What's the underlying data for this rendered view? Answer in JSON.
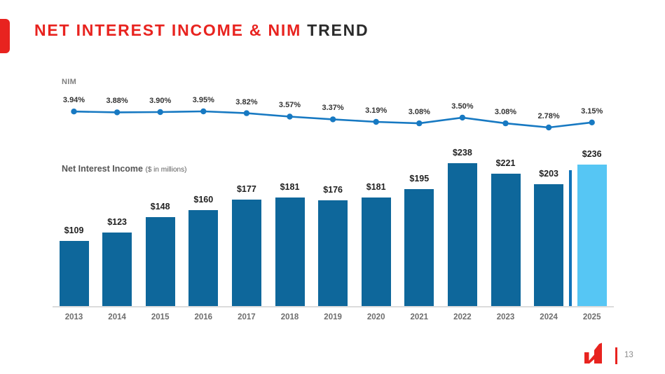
{
  "slide": {
    "title": {
      "highlight": "NET INTEREST INCOME & NIM",
      "rest": " TREND"
    },
    "footer": {
      "page_number": "13",
      "logo_name": "company-mark"
    },
    "colors": {
      "brand_red": "#E8231F",
      "bar_blue": "#0E679B",
      "highlight_blue": "#56C6F4",
      "line_blue": "#1779C2",
      "divider_blue": "#1173B8",
      "axis_gray": "#DCDCDC"
    }
  },
  "chart_data": {
    "type": "bar",
    "title": "Net Interest Income & NIM Trend",
    "categories": [
      "2013",
      "2014",
      "2015",
      "2016",
      "2017",
      "2018",
      "2019",
      "2020",
      "2021",
      "2022",
      "2023",
      "2024",
      "2025"
    ],
    "series": [
      {
        "name": "Net Interest Income",
        "type": "bar",
        "unit": "$ in millions",
        "values": [
          109,
          123,
          148,
          160,
          177,
          181,
          176,
          181,
          195,
          238,
          221,
          203,
          236
        ],
        "labels": [
          "$109",
          "$123",
          "$148",
          "$160",
          "$177",
          "$181",
          "$176",
          "$181",
          "$195",
          "$238",
          "$221",
          "$203",
          "$236"
        ]
      },
      {
        "name": "NIM",
        "type": "line",
        "unit": "%",
        "values": [
          3.94,
          3.88,
          3.9,
          3.95,
          3.82,
          3.57,
          3.37,
          3.19,
          3.08,
          3.5,
          3.08,
          2.78,
          3.15
        ],
        "labels": [
          "3.94%",
          "3.88%",
          "3.90%",
          "3.95%",
          "3.82%",
          "3.57%",
          "3.37%",
          "3.19%",
          "3.08%",
          "3.50%",
          "3.08%",
          "2.78%",
          "3.15%"
        ]
      }
    ],
    "bar_axis_label": "Net Interest Income",
    "bar_axis_sublabel": "($ in millions)",
    "line_axis_label": "NIM",
    "highlight_category": "2025",
    "divider_before_highlight": true,
    "grid": false,
    "legend": "none",
    "ylim_bar": [
      0,
      260
    ],
    "ylim_line": [
      2.5,
      4.2
    ]
  }
}
